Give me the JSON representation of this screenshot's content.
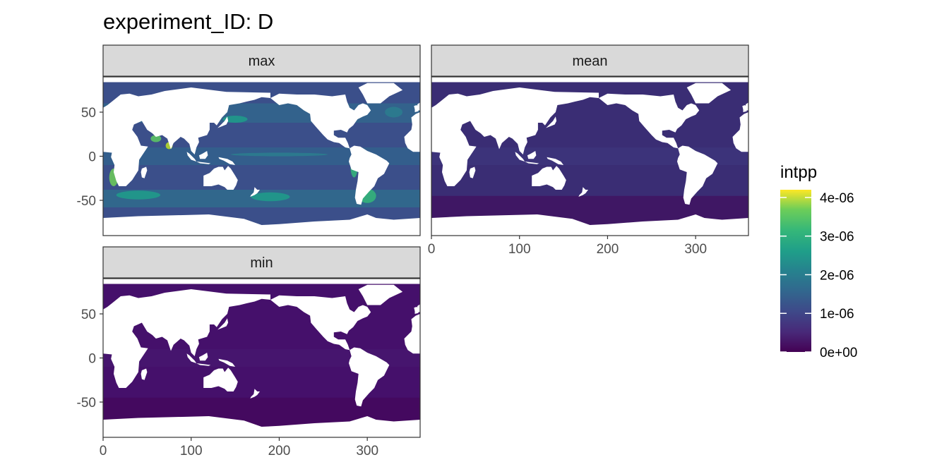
{
  "chart_data": {
    "type": "heatmap",
    "title": "experiment_ID: D",
    "facets": [
      {
        "label": "max",
        "xlim": [
          0,
          360
        ],
        "ylim": [
          -90,
          90
        ]
      },
      {
        "label": "mean",
        "xlim": [
          0,
          360
        ],
        "ylim": [
          -90,
          90
        ]
      },
      {
        "label": "min",
        "xlim": [
          0,
          360
        ],
        "ylim": [
          -90,
          90
        ]
      }
    ],
    "x_ticks": [
      0,
      100,
      200,
      300
    ],
    "y_ticks": [
      50,
      0,
      -50
    ],
    "x_tick_labels": [
      "0",
      "100",
      "200",
      "300"
    ],
    "y_tick_labels": [
      "50",
      "0",
      "-50"
    ],
    "legend": {
      "title": "intpp",
      "placement": "right",
      "range": [
        0,
        4.2e-06
      ],
      "breaks": [
        4e-06,
        3e-06,
        2e-06,
        1e-06,
        0
      ],
      "labels": [
        "4e-06",
        "3e-06",
        "2e-06",
        "1e-06",
        "0e+00"
      ],
      "colormap": "viridis"
    },
    "grid": true
  }
}
